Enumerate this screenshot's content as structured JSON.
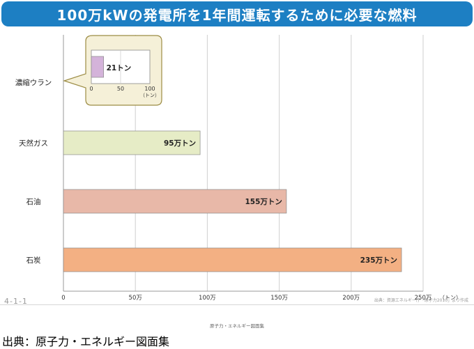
{
  "header": {
    "title": "100万kWの発電所を1年間運転するために必要な燃料"
  },
  "chart_data": {
    "type": "bar",
    "orientation": "horizontal",
    "categories": [
      "濃縮ウラン",
      "天然ガス",
      "石油",
      "石炭"
    ],
    "values": [
      21,
      950000,
      1550000,
      2350000
    ],
    "data_labels": [
      "21トン",
      "95万トン",
      "155万トン",
      "235万トン"
    ],
    "colors": [
      "#d4b3da",
      "#e6ecc6",
      "#e8b8a8",
      "#f3b083"
    ],
    "unit": "（トン）",
    "xlim": [
      0,
      2500000
    ],
    "ticks": [
      0,
      500000,
      1000000,
      1500000,
      2000000,
      2500000
    ],
    "tick_labels": [
      "0",
      "50万",
      "100万",
      "150万",
      "200万",
      "250万"
    ],
    "grid": true,
    "inset": {
      "category": "濃縮ウラン",
      "value": 21,
      "label": "21トン",
      "xlim": [
        0,
        100
      ],
      "ticks": [
        0,
        50,
        100
      ],
      "tick_labels": [
        "0",
        "50",
        "100"
      ],
      "unit": "（トン）",
      "color": "#d4b3da"
    }
  },
  "footer": {
    "page_number": "4-1-1",
    "source_note": "出典：資源エネルギー庁「原子力2010」より作成",
    "booklet": "原子力・エネルギー図面集",
    "source": "出典：原子力・エネルギー図面集"
  }
}
